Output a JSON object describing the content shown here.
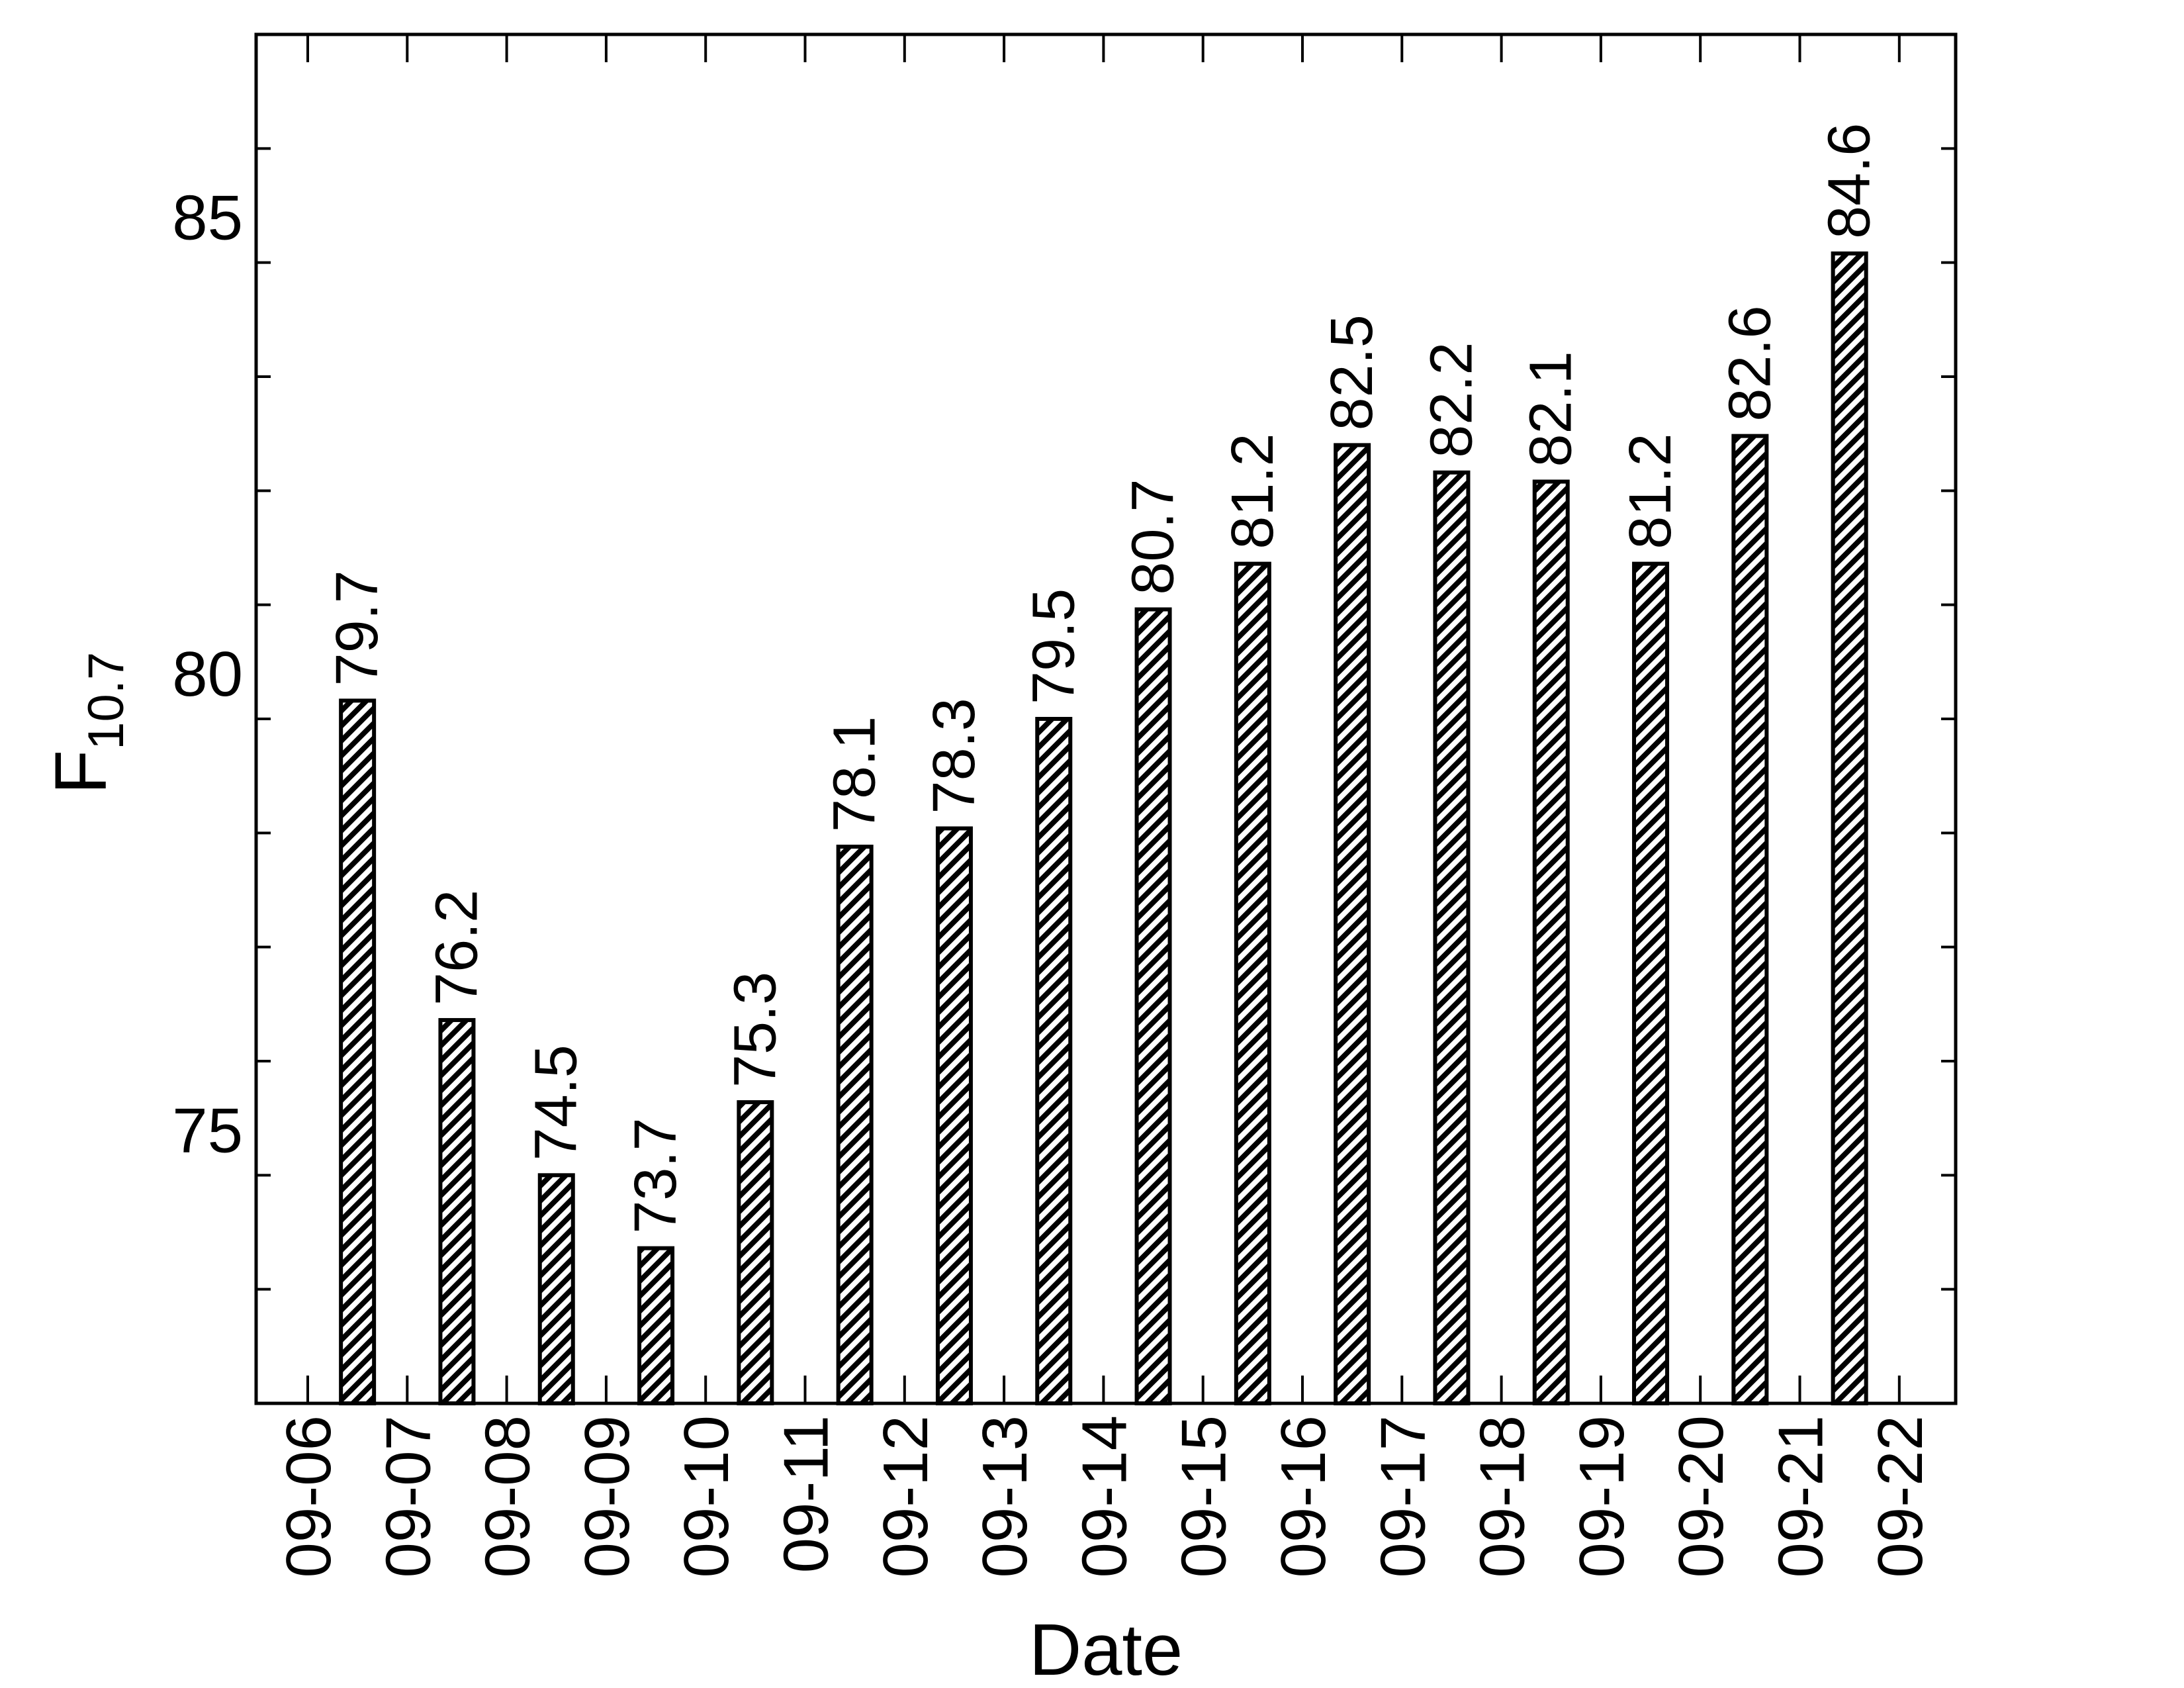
{
  "chart_data": {
    "type": "bar",
    "xlabel": "Date",
    "ylabel_main": "F",
    "ylabel_sub": "10.7",
    "ylim": [
      72.0,
      87.0
    ],
    "y_major_ticks": [
      75,
      80,
      85
    ],
    "y_minor_step": 1.25,
    "x_ticks": [
      "09-06",
      "09-07",
      "09-08",
      "09-09",
      "09-10",
      "09-11",
      "09-12",
      "09-13",
      "09-14",
      "09-15",
      "09-16",
      "09-17",
      "09-18",
      "09-19",
      "09-20",
      "09-21",
      "09-22"
    ],
    "categories": [
      "09-06",
      "09-07",
      "09-08",
      "09-09",
      "09-10",
      "09-11",
      "09-12",
      "09-13",
      "09-14",
      "09-15",
      "09-16",
      "09-17",
      "09-18",
      "09-19",
      "09-20",
      "09-21"
    ],
    "values": [
      79.7,
      76.2,
      74.5,
      73.7,
      75.3,
      78.1,
      78.3,
      79.5,
      80.7,
      81.2,
      82.5,
      82.2,
      82.1,
      81.2,
      82.6,
      84.6
    ],
    "value_labels": [
      "79.7",
      "76.2",
      "74.5",
      "73.7",
      "75.3",
      "78.1",
      "78.3",
      "79.5",
      "80.7",
      "81.2",
      "82.5",
      "82.2",
      "82.1",
      "81.2",
      "82.6",
      "84.6"
    ],
    "bar_pattern": "diagonal-hatch",
    "bar_color": "#000000",
    "grid": false,
    "legend": "none"
  }
}
